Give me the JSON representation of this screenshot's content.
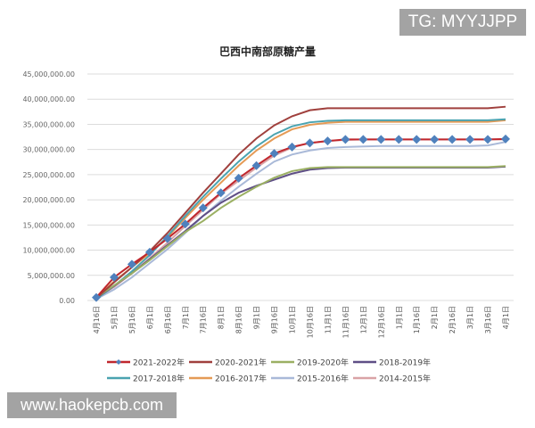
{
  "watermarks": {
    "top": "TG: MYYJJPP",
    "bottom": "www.haokepcb.com"
  },
  "chart_data": {
    "type": "line",
    "title": "巴西中南部原糖产量",
    "xlabel": "",
    "ylabel": "",
    "ylim": [
      0,
      45000000
    ],
    "yticks": [
      "0.00",
      "5,000,000.00",
      "10,000,000.00",
      "15,000,000.00",
      "20,000,000.00",
      "25,000,000.00",
      "30,000,000.00",
      "35,000,000.00",
      "40,000,000.00",
      "45,000,000.00"
    ],
    "grid": true,
    "legend": "bottom",
    "categories": [
      "4月16日",
      "5月1日",
      "5月16日",
      "6月1日",
      "6月16日",
      "7月1日",
      "7月16日",
      "8月1日",
      "8月16日",
      "9月1日",
      "9月16日",
      "10月1日",
      "10月16日",
      "11月1日",
      "11月16日",
      "12月1日",
      "12月16日",
      "1月1日",
      "1月16日",
      "2月1日",
      "2月16日",
      "3月1日",
      "3月16日",
      "4月1日"
    ],
    "series": [
      {
        "name": "2021-2022年",
        "color": "#c0272d",
        "marker": "diamond",
        "marker_color": "#4f81bd",
        "values": [
          0.6,
          4.6,
          7.2,
          9.6,
          12.3,
          15.2,
          18.4,
          21.4,
          24.3,
          26.8,
          29.2,
          30.5,
          31.3,
          31.7,
          32.0,
          32.0,
          32.0,
          32.0,
          32.0,
          32.0,
          32.0,
          32.0,
          32.0,
          32.1
        ]
      },
      {
        "name": "2020-2021年",
        "color": "#a0403d",
        "values": [
          0.5,
          3.6,
          6.6,
          9.8,
          13.4,
          17.4,
          21.4,
          25.2,
          29.0,
          32.2,
          34.8,
          36.6,
          37.8,
          38.2,
          38.2,
          38.2,
          38.2,
          38.2,
          38.2,
          38.2,
          38.2,
          38.2,
          38.2,
          38.5
        ]
      },
      {
        "name": "2019-2020年",
        "color": "#9bb063",
        "values": [
          0.6,
          3.0,
          5.4,
          8.0,
          10.8,
          13.6,
          15.8,
          18.4,
          20.6,
          22.6,
          24.4,
          25.7,
          26.3,
          26.5,
          26.5,
          26.5,
          26.5,
          26.5,
          26.5,
          26.5,
          26.5,
          26.5,
          26.5,
          26.7
        ]
      },
      {
        "name": "2018-2019年",
        "color": "#5f4f86",
        "values": [
          0.5,
          2.9,
          5.4,
          8.2,
          11.0,
          13.8,
          16.8,
          19.4,
          21.4,
          22.8,
          24.0,
          25.2,
          26.0,
          26.3,
          26.4,
          26.4,
          26.4,
          26.4,
          26.4,
          26.4,
          26.4,
          26.4,
          26.4,
          26.6
        ]
      },
      {
        "name": "2017-2018年",
        "color": "#4aa3b0",
        "values": [
          0.3,
          2.9,
          5.8,
          9.0,
          12.8,
          16.8,
          20.6,
          24.2,
          27.6,
          30.6,
          33.0,
          34.6,
          35.4,
          35.7,
          35.8,
          35.8,
          35.8,
          35.8,
          35.8,
          35.8,
          35.8,
          35.8,
          35.8,
          36.0
        ]
      },
      {
        "name": "2016-2017年",
        "color": "#e59a55",
        "values": [
          0.5,
          3.8,
          6.6,
          9.4,
          12.6,
          16.4,
          20.0,
          23.4,
          26.8,
          29.8,
          32.2,
          34.0,
          34.9,
          35.3,
          35.5,
          35.5,
          35.5,
          35.5,
          35.5,
          35.5,
          35.5,
          35.5,
          35.5,
          35.8
        ]
      },
      {
        "name": "2015-2016年",
        "color": "#a9b9d8",
        "values": [
          0.3,
          2.2,
          4.6,
          7.4,
          10.2,
          13.4,
          16.8,
          19.8,
          22.6,
          25.2,
          27.6,
          29.0,
          29.8,
          30.3,
          30.5,
          30.6,
          30.7,
          30.7,
          30.7,
          30.7,
          30.7,
          30.7,
          30.8,
          31.5
        ]
      },
      {
        "name": "2014-2015年",
        "color": "#d9a3a6",
        "values": [
          0.4,
          2.7,
          5.4,
          8.4,
          11.5,
          14.8,
          18.0,
          21.2,
          23.8,
          26.4,
          28.8,
          30.4,
          31.3,
          31.7,
          31.9,
          32.0,
          32.0,
          32.0,
          32.0,
          32.0,
          32.0,
          32.0,
          32.0,
          32.0
        ]
      }
    ],
    "value_unit_multiplier": 1000000
  }
}
